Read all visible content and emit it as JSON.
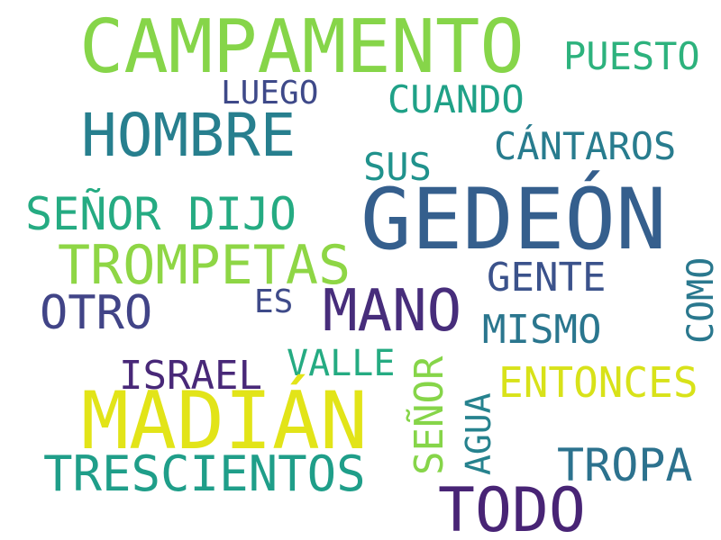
{
  "words": [
    {
      "text": "CAMPAMENTO",
      "color": "#86d549"
    },
    {
      "text": "PUESTO",
      "color": "#2db27d"
    },
    {
      "text": "LUEGO",
      "color": "#3e4989"
    },
    {
      "text": "CUANDO",
      "color": "#1fa187"
    },
    {
      "text": "HOMBRE",
      "color": "#277f8e"
    },
    {
      "text": "CÁNTAROS",
      "color": "#287c8e"
    },
    {
      "text": "SUS",
      "color": "#20928c"
    },
    {
      "text": "GEDEÓN",
      "color": "#355f8d"
    },
    {
      "text": "SEÑOR DIJO",
      "color": "#25ab82"
    },
    {
      "text": "TROMPETAS",
      "color": "#8ed645"
    },
    {
      "text": "GENTE",
      "color": "#3b528b"
    },
    {
      "text": "COMO",
      "color": "#2a788e"
    },
    {
      "text": "OTRO",
      "color": "#414487"
    },
    {
      "text": "ES",
      "color": "#3e4a89"
    },
    {
      "text": "MANO",
      "color": "#472d7b"
    },
    {
      "text": "MISMO",
      "color": "#2a768e"
    },
    {
      "text": "ISRAEL",
      "color": "#482878"
    },
    {
      "text": "VALLE",
      "color": "#25ab82"
    },
    {
      "text": "SEÑOR",
      "color": "#86d549"
    },
    {
      "text": "ENTONCES",
      "color": "#d8e219"
    },
    {
      "text": "MADIÁN",
      "color": "#e2e418"
    },
    {
      "text": "AGUA",
      "color": "#26828e"
    },
    {
      "text": "TROPA",
      "color": "#2c728e"
    },
    {
      "text": "TRESCIENTOS",
      "color": "#1f9e89"
    },
    {
      "text": "TODO",
      "color": "#482475"
    }
  ]
}
